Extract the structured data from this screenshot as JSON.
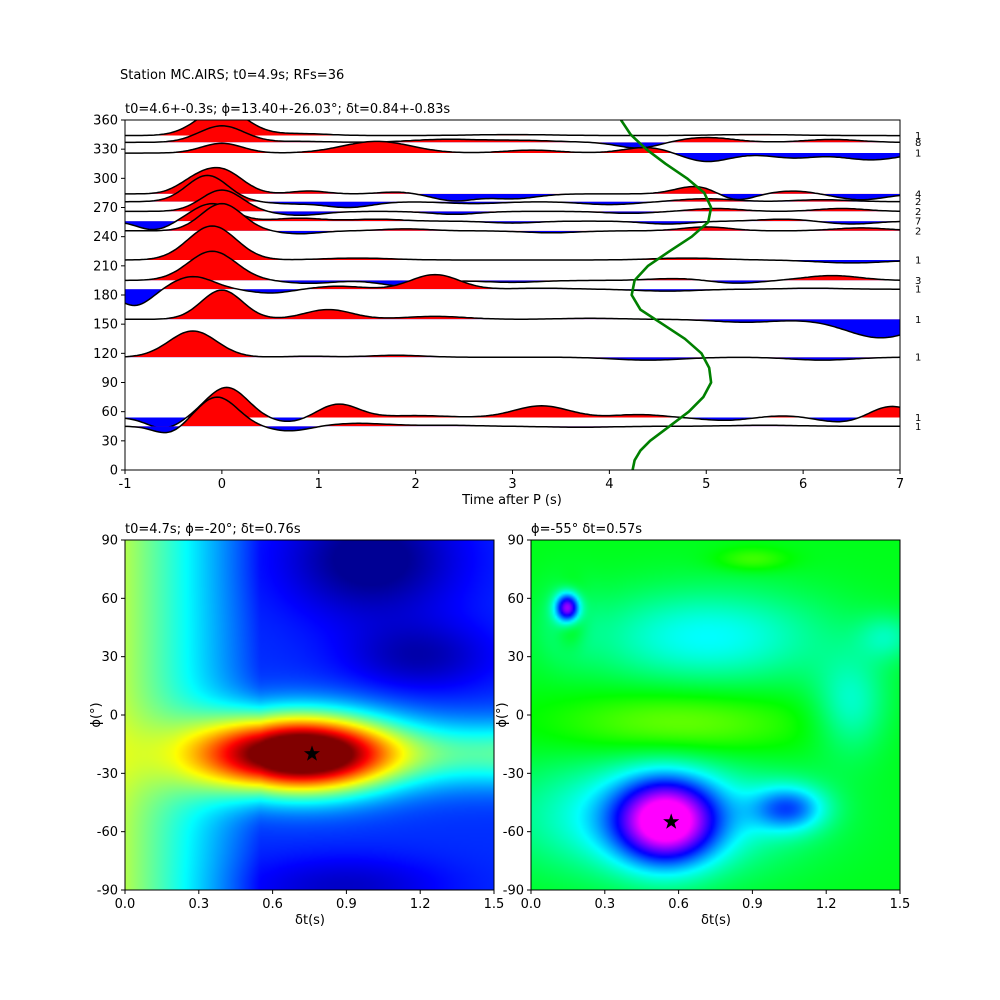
{
  "figure_title": "Station MC.AIRS; t0=4.9s; RFs=36",
  "chart_data": [
    {
      "type": "line",
      "panel": "receiver-functions",
      "title": "t0=4.6+-0.3s; ϕ=13.40+-26.03°; δt=0.84+-0.83s",
      "xlabel": "Time after P (s)",
      "ylabel": "",
      "xlim": [
        -1,
        7
      ],
      "ylim": [
        0,
        360
      ],
      "xticks": [
        -1,
        0,
        1,
        2,
        3,
        4,
        5,
        6,
        7
      ],
      "yticks": [
        0,
        30,
        60,
        90,
        120,
        150,
        180,
        210,
        240,
        270,
        300,
        330,
        360
      ],
      "fill_colors": {
        "positive": "#ff0000",
        "negative": "#0000ff"
      },
      "t0_curve_color": "#008000",
      "t0_curve": {
        "baz": [
          0,
          10,
          20,
          30,
          45,
          60,
          75,
          90,
          105,
          120,
          135,
          150,
          165,
          180,
          195,
          210,
          225,
          240,
          255,
          270,
          285,
          300,
          315,
          330,
          345,
          360
        ],
        "t": [
          4.24,
          4.26,
          4.32,
          4.42,
          4.62,
          4.82,
          4.97,
          5.05,
          5.03,
          4.95,
          4.78,
          4.55,
          4.32,
          4.23,
          4.26,
          4.4,
          4.62,
          4.85,
          5.02,
          5.05,
          4.98,
          4.8,
          4.58,
          4.38,
          4.22,
          4.12
        ]
      },
      "traces": [
        {
          "baz": 344,
          "count": "1",
          "wavelets": [
            [
              0.0,
              28,
              0.35
            ],
            [
              0.8,
              2,
              0.4
            ],
            [
              3.0,
              1,
              0.6
            ],
            [
              5.5,
              1,
              0.6
            ]
          ]
        },
        {
          "baz": 337,
          "count": "8",
          "wavelets": [
            [
              0.0,
              17,
              0.33
            ],
            [
              0.8,
              1,
              0.4
            ],
            [
              2.3,
              3,
              0.5
            ],
            [
              3.1,
              2,
              0.5
            ],
            [
              4.3,
              -6,
              0.3
            ],
            [
              5.0,
              5,
              0.4
            ],
            [
              6.3,
              3,
              0.4
            ]
          ]
        },
        {
          "baz": 326,
          "count": "1",
          "wavelets": [
            [
              0.0,
              10,
              0.3
            ],
            [
              1.6,
              12,
              0.5
            ],
            [
              3.2,
              3,
              0.4
            ],
            [
              4.4,
              6,
              0.35
            ],
            [
              5.0,
              -9,
              0.35
            ],
            [
              5.9,
              -5,
              0.35
            ],
            [
              6.7,
              -7,
              0.4
            ]
          ]
        },
        {
          "baz": 284,
          "count": "4",
          "wavelets": [
            [
              -0.3,
              10,
              0.25
            ],
            [
              0.0,
              24,
              0.3
            ],
            [
              0.9,
              3,
              0.25
            ],
            [
              1.8,
              2,
              0.25
            ],
            [
              2.4,
              -7,
              0.3
            ],
            [
              3.0,
              -5,
              0.35
            ],
            [
              4.9,
              8,
              0.3
            ],
            [
              5.3,
              -7,
              0.25
            ],
            [
              5.9,
              3,
              0.3
            ],
            [
              6.6,
              -6,
              0.35
            ]
          ]
        },
        {
          "baz": 276,
          "count": "2",
          "wavelets": [
            [
              -0.15,
              27,
              0.3
            ],
            [
              0.7,
              -2,
              0.3
            ],
            [
              1.3,
              -6,
              0.35
            ],
            [
              2.6,
              -2,
              0.4
            ],
            [
              4.0,
              -3,
              0.4
            ],
            [
              5.0,
              3,
              0.4
            ],
            [
              6.2,
              2,
              0.4
            ]
          ]
        },
        {
          "baz": 266,
          "count": "2",
          "wavelets": [
            [
              0.0,
              22,
              0.3
            ],
            [
              0.8,
              -4,
              0.35
            ],
            [
              2.4,
              -3,
              0.35
            ],
            [
              4.2,
              -2,
              0.35
            ],
            [
              5.1,
              3,
              0.35
            ],
            [
              6.4,
              3,
              0.35
            ]
          ]
        },
        {
          "baz": 256,
          "count": "7",
          "wavelets": [
            [
              -0.7,
              -9,
              0.25
            ],
            [
              -0.1,
              18,
              0.3
            ],
            [
              0.8,
              3,
              0.35
            ],
            [
              1.6,
              2,
              0.35
            ],
            [
              3.0,
              -2,
              0.35
            ],
            [
              4.6,
              -3,
              0.35
            ],
            [
              5.8,
              2,
              0.35
            ],
            [
              6.5,
              -3,
              0.35
            ]
          ]
        },
        {
          "baz": 246,
          "count": "2",
          "wavelets": [
            [
              0.0,
              28,
              0.3
            ],
            [
              0.8,
              -3,
              0.3
            ],
            [
              1.9,
              2,
              0.35
            ],
            [
              3.4,
              -2,
              0.4
            ],
            [
              5.0,
              4,
              0.35
            ],
            [
              6.6,
              3,
              0.4
            ]
          ]
        },
        {
          "baz": 216,
          "count": "1",
          "wavelets": [
            [
              -0.1,
              35,
              0.35
            ],
            [
              1.4,
              2,
              0.5
            ],
            [
              4.8,
              2,
              0.5
            ],
            [
              6.5,
              -3,
              0.5
            ]
          ]
        },
        {
          "baz": 195,
          "count": "3",
          "wavelets": [
            [
              -0.1,
              30,
              0.35
            ],
            [
              0.9,
              -3,
              0.35
            ],
            [
              1.9,
              -6,
              0.35
            ],
            [
              3.0,
              -2,
              0.4
            ],
            [
              4.7,
              2,
              0.4
            ],
            [
              5.3,
              -3,
              0.35
            ],
            [
              6.3,
              5,
              0.4
            ]
          ]
        },
        {
          "baz": 186,
          "count": "1",
          "wavelets": [
            [
              -0.9,
              -17,
              0.25
            ],
            [
              -0.3,
              13,
              0.3
            ],
            [
              0.5,
              -4,
              0.3
            ],
            [
              1.2,
              3,
              0.35
            ],
            [
              2.2,
              15,
              0.35
            ],
            [
              3.3,
              1,
              0.4
            ],
            [
              4.6,
              -2,
              0.45
            ],
            [
              6.1,
              1,
              0.4
            ]
          ]
        },
        {
          "baz": 155,
          "count": "1",
          "wavelets": [
            [
              0.0,
              30,
              0.3
            ],
            [
              1.1,
              10,
              0.35
            ],
            [
              2.2,
              3,
              0.45
            ],
            [
              3.8,
              1,
              0.45
            ],
            [
              5.4,
              -3,
              0.45
            ],
            [
              6.8,
              -19,
              0.5
            ]
          ]
        },
        {
          "baz": 116,
          "count": "1",
          "wavelets": [
            [
              -0.3,
              27,
              0.35
            ],
            [
              0.9,
              1,
              0.35
            ],
            [
              1.8,
              2,
              0.4
            ],
            [
              4.4,
              -3,
              0.5
            ],
            [
              6.2,
              -3,
              0.45
            ]
          ]
        },
        {
          "baz": 54,
          "count": "1",
          "wavelets": [
            [
              -0.6,
              -11,
              0.25
            ],
            [
              0.05,
              31,
              0.3
            ],
            [
              0.7,
              -5,
              0.3
            ],
            [
              1.2,
              14,
              0.3
            ],
            [
              2.0,
              2,
              0.45
            ],
            [
              3.3,
              12,
              0.4
            ],
            [
              4.3,
              3,
              0.35
            ],
            [
              5.2,
              -3,
              0.35
            ],
            [
              5.8,
              2,
              0.35
            ],
            [
              6.4,
              -5,
              0.35
            ],
            [
              6.9,
              12,
              0.3
            ]
          ]
        },
        {
          "baz": 45,
          "count": "1",
          "wavelets": [
            [
              -0.55,
              -8,
              0.22
            ],
            [
              -0.05,
              30,
              0.3
            ],
            [
              0.7,
              -5,
              0.3
            ],
            [
              1.4,
              3,
              0.45
            ],
            [
              2.3,
              1,
              0.45
            ],
            [
              3.7,
              -1,
              0.5
            ],
            [
              5.6,
              1,
              0.5
            ]
          ]
        }
      ]
    },
    {
      "type": "heatmap",
      "panel": "grid-search-left",
      "title": "t0=4.7s; ϕ=-20°; δt=0.76s",
      "xlabel": "δt(s)",
      "ylabel": "ϕ(°)",
      "xlim": [
        0.0,
        1.5
      ],
      "ylim": [
        -90,
        90
      ],
      "xticks": [
        "0.0",
        "0.3",
        "0.6",
        "0.9",
        "1.2",
        "1.5"
      ],
      "yticks": [
        -90,
        -60,
        -30,
        0,
        30,
        60,
        90
      ],
      "colormap": "jet",
      "best": {
        "dt": 0.76,
        "phi": -20
      },
      "star_color": "#000000"
    },
    {
      "type": "heatmap",
      "panel": "grid-search-right",
      "title": "ϕ=-55° δt=0.57s",
      "xlabel": "δt(s)",
      "ylabel": "ϕ(°)",
      "xlim": [
        0.0,
        1.5
      ],
      "ylim": [
        -90,
        90
      ],
      "xticks": [
        "0.0",
        "0.3",
        "0.6",
        "0.9",
        "1.2",
        "1.5"
      ],
      "yticks": [
        -90,
        -60,
        -30,
        0,
        30,
        60,
        90
      ],
      "colormap": "gist_rainbow",
      "best": {
        "dt": 0.57,
        "phi": -55
      },
      "star_color": "#000000"
    }
  ]
}
